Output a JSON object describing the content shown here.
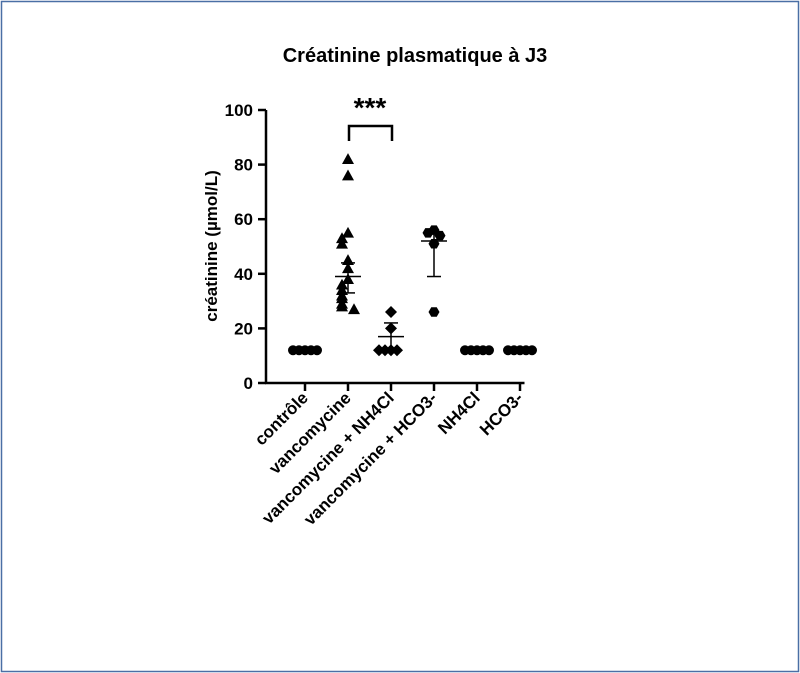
{
  "chart_data": {
    "type": "dotplot",
    "title": "Créatinine plasmatique à J3",
    "y_label": "créatinine  (µmol/L)",
    "categories": [
      "contrôle",
      "vancomycine",
      "vancomycine + NH4Cl",
      "vancomycine + HCO3-",
      "NH4Cl",
      "HCO3-"
    ],
    "groups": [
      {
        "marker": "circle",
        "values": [
          12,
          12,
          12,
          12,
          12
        ],
        "center": 12,
        "error": [
          12,
          12
        ]
      },
      {
        "marker": "triangle",
        "values": [
          82,
          76,
          55,
          53,
          51,
          45,
          42,
          38,
          36,
          34,
          32,
          31,
          29,
          28,
          27
        ],
        "center": 39,
        "error": [
          33,
          44
        ]
      },
      {
        "marker": "diamond",
        "values": [
          26,
          20,
          12,
          12,
          12,
          12
        ],
        "center": 17,
        "error": [
          12,
          22
        ]
      },
      {
        "marker": "hexagon",
        "values": [
          56,
          55,
          54,
          51,
          26
        ],
        "center": 52,
        "error": [
          39,
          55
        ]
      },
      {
        "marker": "circle",
        "values": [
          12,
          12,
          12,
          12,
          12
        ],
        "center": 12,
        "error": [
          12,
          12
        ]
      },
      {
        "marker": "circle",
        "values": [
          12,
          12,
          12,
          12,
          12
        ],
        "center": 12,
        "error": [
          12,
          12
        ]
      }
    ],
    "annotation": "***",
    "ylim": [
      0,
      100
    ],
    "yticks": [
      0,
      20,
      40,
      60,
      80,
      100
    ],
    "color": "#000000"
  }
}
